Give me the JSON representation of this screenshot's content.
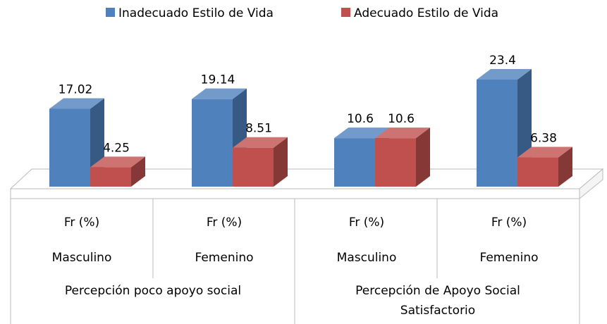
{
  "chart_data": {
    "type": "bar3d",
    "categories": [
      "Fr (%)",
      "Fr (%)",
      "Fr (%)",
      "Fr (%)"
    ],
    "sex_labels": [
      "Masculino",
      "Femenino",
      "Masculino",
      "Femenino"
    ],
    "groups": [
      "Percepción poco apoyo social",
      "Percepción de Apoyo Social Satisfactorio"
    ],
    "series": [
      {
        "name": "Inadecuado Estilo de Vida",
        "color": "#4f81bd",
        "values": [
          17.02,
          19.14,
          10.6,
          23.4
        ]
      },
      {
        "name": "Adecuado Estilo de Vida",
        "color": "#c0504d",
        "values": [
          4.25,
          8.51,
          10.6,
          6.38
        ]
      }
    ],
    "legend": "top"
  }
}
